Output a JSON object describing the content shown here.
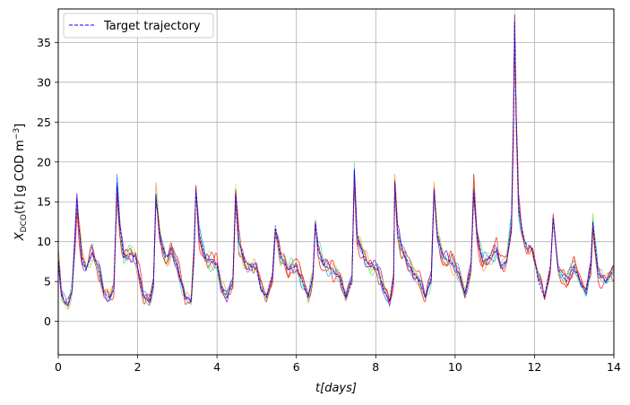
{
  "chart_data": {
    "type": "line",
    "xlabel_prefix": "t",
    "xlabel_bracket": "[days]",
    "ylabel_main": "X",
    "ylabel_sub": "DCO",
    "ylabel_rest": "(t) [g COD m",
    "ylabel_sup": "−3",
    "ylabel_end": "]",
    "xlim": [
      0,
      14
    ],
    "ylim": [
      -4.2,
      39.2
    ],
    "xticks": [
      0,
      2,
      4,
      6,
      8,
      10,
      12,
      14
    ],
    "yticks": [
      0,
      5,
      10,
      15,
      20,
      25,
      30,
      35
    ],
    "grid": true,
    "legend": {
      "label": "Target trajectory",
      "position": "top-left"
    },
    "target": {
      "name": "Target trajectory",
      "color": "#0000ff",
      "style": "dashed",
      "points": [
        [
          0.0,
          8.0
        ],
        [
          0.03,
          6.5
        ],
        [
          0.08,
          3.5
        ],
        [
          0.15,
          2.5
        ],
        [
          0.25,
          2.0
        ],
        [
          0.35,
          4.0
        ],
        [
          0.42,
          10.0
        ],
        [
          0.47,
          15.5
        ],
        [
          0.52,
          12.0
        ],
        [
          0.6,
          8.0
        ],
        [
          0.7,
          6.5
        ],
        [
          0.85,
          8.5
        ],
        [
          0.95,
          7.5
        ],
        [
          1.05,
          6.0
        ],
        [
          1.15,
          3.5
        ],
        [
          1.3,
          3.0
        ],
        [
          1.4,
          4.0
        ],
        [
          1.45,
          12.0
        ],
        [
          1.48,
          17.0
        ],
        [
          1.55,
          12.0
        ],
        [
          1.65,
          8.0
        ],
        [
          1.8,
          8.5
        ],
        [
          1.95,
          8.0
        ],
        [
          2.05,
          5.5
        ],
        [
          2.15,
          3.0
        ],
        [
          2.3,
          2.5
        ],
        [
          2.4,
          5.0
        ],
        [
          2.46,
          16.0
        ],
        [
          2.55,
          11.0
        ],
        [
          2.7,
          8.0
        ],
        [
          2.85,
          8.5
        ],
        [
          3.0,
          7.0
        ],
        [
          3.1,
          5.0
        ],
        [
          3.2,
          3.0
        ],
        [
          3.35,
          2.5
        ],
        [
          3.42,
          8.0
        ],
        [
          3.47,
          16.5
        ],
        [
          3.55,
          11.0
        ],
        [
          3.7,
          8.0
        ],
        [
          3.85,
          7.5
        ],
        [
          4.0,
          7.0
        ],
        [
          4.1,
          4.5
        ],
        [
          4.25,
          3.0
        ],
        [
          4.4,
          5.0
        ],
        [
          4.47,
          16.0
        ],
        [
          4.55,
          10.0
        ],
        [
          4.7,
          7.5
        ],
        [
          4.85,
          7.0
        ],
        [
          5.0,
          6.5
        ],
        [
          5.1,
          4.0
        ],
        [
          5.25,
          3.0
        ],
        [
          5.4,
          6.0
        ],
        [
          5.47,
          12.0
        ],
        [
          5.6,
          8.0
        ],
        [
          5.8,
          6.5
        ],
        [
          6.0,
          7.0
        ],
        [
          6.15,
          5.0
        ],
        [
          6.3,
          3.0
        ],
        [
          6.42,
          6.0
        ],
        [
          6.48,
          12.5
        ],
        [
          6.55,
          9.0
        ],
        [
          6.7,
          7.0
        ],
        [
          6.9,
          6.5
        ],
        [
          7.1,
          5.5
        ],
        [
          7.25,
          3.0
        ],
        [
          7.4,
          5.0
        ],
        [
          7.46,
          19.0
        ],
        [
          7.53,
          11.0
        ],
        [
          7.7,
          8.0
        ],
        [
          7.85,
          7.0
        ],
        [
          8.05,
          6.5
        ],
        [
          8.2,
          4.0
        ],
        [
          8.35,
          2.5
        ],
        [
          8.45,
          5.5
        ],
        [
          8.48,
          17.5
        ],
        [
          8.55,
          11.0
        ],
        [
          8.7,
          8.5
        ],
        [
          8.8,
          7.5
        ],
        [
          8.9,
          6.5
        ],
        [
          9.1,
          5.0
        ],
        [
          9.25,
          3.0
        ],
        [
          9.4,
          5.5
        ],
        [
          9.47,
          16.5
        ],
        [
          9.55,
          11.0
        ],
        [
          9.7,
          8.0
        ],
        [
          9.9,
          7.5
        ],
        [
          10.1,
          6.0
        ],
        [
          10.25,
          3.5
        ],
        [
          10.4,
          6.5
        ],
        [
          10.47,
          16.5
        ],
        [
          10.55,
          11.0
        ],
        [
          10.7,
          7.5
        ],
        [
          10.9,
          8.0
        ],
        [
          11.05,
          9.0
        ],
        [
          11.15,
          7.0
        ],
        [
          11.3,
          7.5
        ],
        [
          11.42,
          12.0
        ],
        [
          11.47,
          25.0
        ],
        [
          11.5,
          37.5
        ],
        [
          11.54,
          25.0
        ],
        [
          11.6,
          14.0
        ],
        [
          11.75,
          10.0
        ],
        [
          11.95,
          9.0
        ],
        [
          12.1,
          5.0
        ],
        [
          12.25,
          3.0
        ],
        [
          12.4,
          7.0
        ],
        [
          12.47,
          13.0
        ],
        [
          12.6,
          6.5
        ],
        [
          12.8,
          5.0
        ],
        [
          13.0,
          7.0
        ],
        [
          13.15,
          5.0
        ],
        [
          13.3,
          3.5
        ],
        [
          13.42,
          7.0
        ],
        [
          13.47,
          12.5
        ],
        [
          13.6,
          6.0
        ],
        [
          13.8,
          5.0
        ],
        [
          14.0,
          6.5
        ]
      ]
    },
    "series": [
      {
        "color": "#ff0000",
        "seed": 1,
        "amp": 1.1
      },
      {
        "color": "#ff9040",
        "seed": 2,
        "amp": 0.9
      },
      {
        "color": "#40e0a0",
        "seed": 3,
        "amp": 0.9
      },
      {
        "color": "#2090ff",
        "seed": 4,
        "amp": 0.8
      },
      {
        "color": "#b0f060",
        "seed": 5,
        "amp": 0.8
      },
      {
        "color": "#8000d0",
        "seed": 6,
        "amp": 0.7
      },
      {
        "color": "#e02000",
        "seed": 7,
        "amp": 1.0
      }
    ]
  }
}
